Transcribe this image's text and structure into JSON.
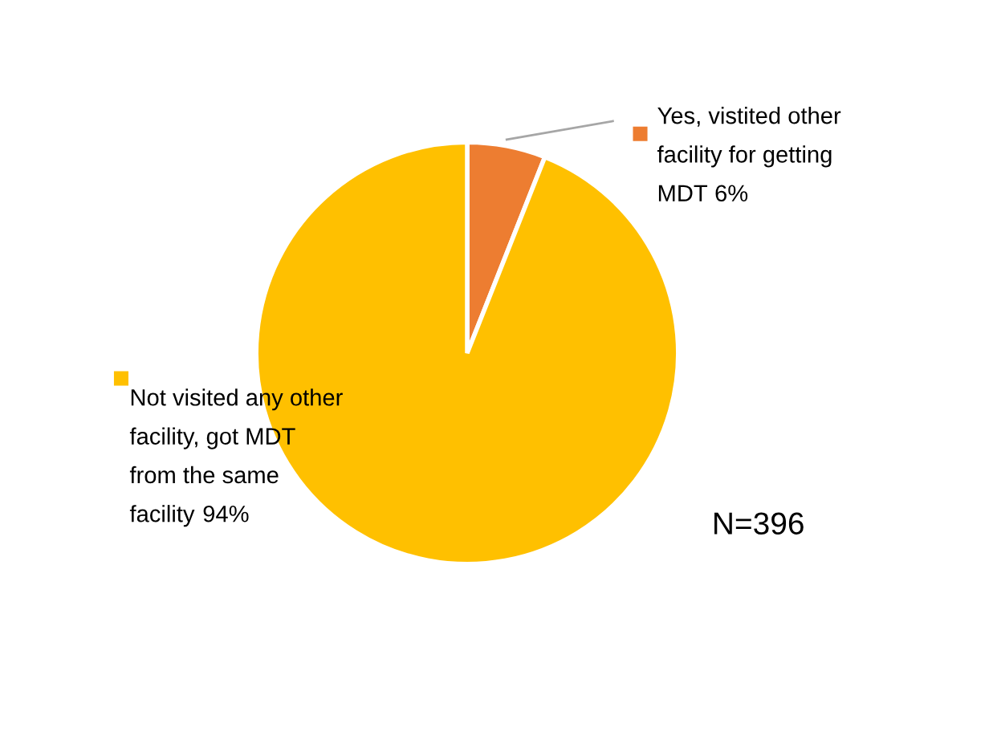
{
  "chart_data": {
    "type": "pie",
    "categories": [
      "Yes, vistited other facility for getting MDT",
      "Not visited any other facility, got MDT from the same facility"
    ],
    "values": [
      6,
      94
    ],
    "colors": [
      "#ed7d31",
      "#ffc000"
    ],
    "value_labels": [
      "6%",
      "94%"
    ],
    "legend": "top right",
    "data_labels": true,
    "annotations": [
      "N=396"
    ]
  }
}
